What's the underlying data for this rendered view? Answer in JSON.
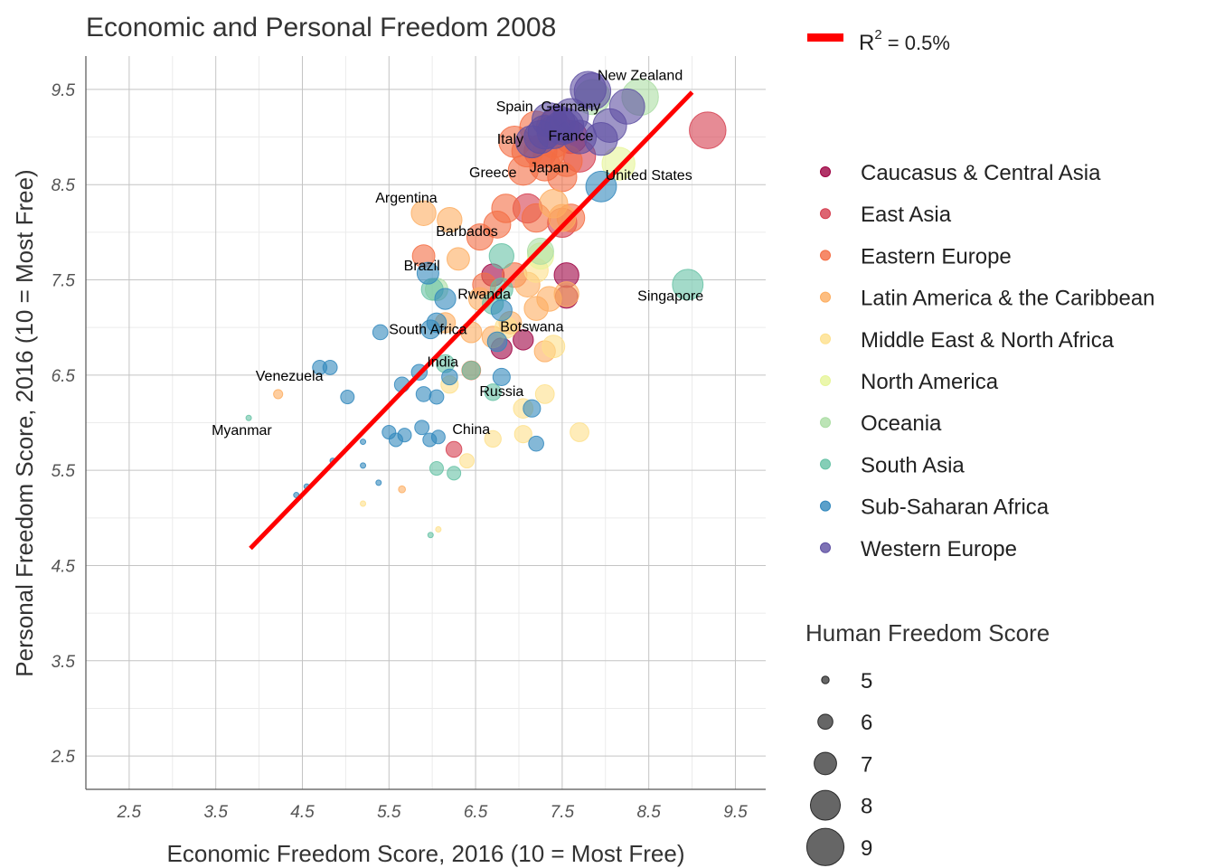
{
  "chart_data": {
    "type": "scatter",
    "title": "Economic and Personal Freedom 2008",
    "xlabel": "Economic Freedom Score, 2016 (10 = Most Free)",
    "ylabel": "Personal Freedom Score, 2016 (10 = Most Free)",
    "xlim": [
      2.0,
      9.85
    ],
    "ylim": [
      2.15,
      9.85
    ],
    "x_ticks": [
      "2.5",
      "3.5",
      "4.5",
      "5.5",
      "6.5",
      "7.5",
      "8.5",
      "9.5"
    ],
    "y_ticks": [
      "2.5",
      "3.5",
      "4.5",
      "5.5",
      "6.5",
      "7.5",
      "8.5",
      "9.5"
    ],
    "grid": true,
    "regression": {
      "label": "R2 = 0.5%",
      "label_main": "R",
      "label_sup": "2",
      "label_rest": " = 0.5%",
      "x": [
        3.9,
        9.0
      ],
      "y": [
        4.68,
        9.47
      ],
      "color": "#ff0000"
    },
    "legend_regions": {
      "position": "right",
      "items": [
        {
          "name": "Caucasus & Central Asia",
          "color": "#9e0142"
        },
        {
          "name": "East Asia",
          "color": "#d53e4f"
        },
        {
          "name": "Eastern Europe",
          "color": "#f46d43"
        },
        {
          "name": "Latin America & the Caribbean",
          "color": "#fdae61"
        },
        {
          "name": "Middle East & North Africa",
          "color": "#fee08b"
        },
        {
          "name": "North America",
          "color": "#e6f598"
        },
        {
          "name": "Oceania",
          "color": "#abdda4"
        },
        {
          "name": "South Asia",
          "color": "#66c2a5"
        },
        {
          "name": "Sub-Saharan Africa",
          "color": "#3288bd"
        },
        {
          "name": "Western Europe",
          "color": "#5e4fa2"
        }
      ]
    },
    "legend_size": {
      "title": "Human Freedom Score",
      "items": [
        {
          "label": "5",
          "value": 5
        },
        {
          "label": "6",
          "value": 6
        },
        {
          "label": "7",
          "value": 7
        },
        {
          "label": "8",
          "value": 8
        },
        {
          "label": "9",
          "value": 9
        }
      ]
    },
    "annotations": [
      {
        "text": "New Zealand",
        "x": 8.4,
        "y": 9.6
      },
      {
        "text": "Spain",
        "x": 6.95,
        "y": 9.27
      },
      {
        "text": "Germany",
        "x": 7.6,
        "y": 9.27
      },
      {
        "text": "Italy",
        "x": 6.9,
        "y": 8.93
      },
      {
        "text": "France",
        "x": 7.6,
        "y": 8.96
      },
      {
        "text": "Greece",
        "x": 6.7,
        "y": 8.58
      },
      {
        "text": "Japan",
        "x": 7.35,
        "y": 8.63
      },
      {
        "text": "United States",
        "x": 8.5,
        "y": 8.55
      },
      {
        "text": "Argentina",
        "x": 5.7,
        "y": 8.31
      },
      {
        "text": "Barbados",
        "x": 6.4,
        "y": 7.96
      },
      {
        "text": "Brazil",
        "x": 5.88,
        "y": 7.6
      },
      {
        "text": "Singapore",
        "x": 8.75,
        "y": 7.28
      },
      {
        "text": "Rwanda",
        "x": 6.6,
        "y": 7.3
      },
      {
        "text": "South Africa",
        "x": 5.95,
        "y": 6.93
      },
      {
        "text": "Botswana",
        "x": 7.15,
        "y": 6.96
      },
      {
        "text": "India",
        "x": 6.12,
        "y": 6.59
      },
      {
        "text": "Venezuela",
        "x": 4.35,
        "y": 6.44
      },
      {
        "text": "Russia",
        "x": 6.8,
        "y": 6.28
      },
      {
        "text": "Myanmar",
        "x": 3.8,
        "y": 5.87
      },
      {
        "text": "China",
        "x": 6.45,
        "y": 5.88
      }
    ],
    "series": [
      {
        "name": "Caucasus & Central Asia",
        "points": [
          {
            "x": 7.55,
            "y": 7.55,
            "s": 7.3
          },
          {
            "x": 7.55,
            "y": 7.32,
            "s": 7.0
          },
          {
            "x": 7.05,
            "y": 6.87,
            "s": 6.7
          },
          {
            "x": 6.8,
            "y": 6.78,
            "s": 6.8
          },
          {
            "x": 6.7,
            "y": 7.55,
            "s": 7.0
          },
          {
            "x": 7.6,
            "y": 9.0,
            "s": 8.4
          }
        ]
      },
      {
        "name": "East Asia",
        "points": [
          {
            "x": 9.18,
            "y": 9.07,
            "s": 8.9
          },
          {
            "x": 6.25,
            "y": 5.72,
            "s": 6.1
          },
          {
            "x": 7.5,
            "y": 8.1,
            "s": 7.9
          },
          {
            "x": 7.25,
            "y": 8.85,
            "s": 8.4
          },
          {
            "x": 7.4,
            "y": 9.1,
            "s": 8.6
          },
          {
            "x": 7.7,
            "y": 8.8,
            "s": 8.3
          },
          {
            "x": 7.1,
            "y": 8.25,
            "s": 7.9
          }
        ]
      },
      {
        "name": "Eastern Europe",
        "points": [
          {
            "x": 6.95,
            "y": 8.95,
            "s": 8.2
          },
          {
            "x": 7.2,
            "y": 9.1,
            "s": 8.4
          },
          {
            "x": 7.35,
            "y": 8.85,
            "s": 8.3
          },
          {
            "x": 7.55,
            "y": 8.75,
            "s": 8.2
          },
          {
            "x": 7.05,
            "y": 8.65,
            "s": 8.0
          },
          {
            "x": 7.3,
            "y": 8.7,
            "s": 8.1
          },
          {
            "x": 7.5,
            "y": 8.58,
            "s": 7.9
          },
          {
            "x": 6.85,
            "y": 8.25,
            "s": 7.8
          },
          {
            "x": 7.2,
            "y": 8.15,
            "s": 7.8
          },
          {
            "x": 6.55,
            "y": 7.95,
            "s": 7.5
          },
          {
            "x": 6.75,
            "y": 8.08,
            "s": 7.6
          },
          {
            "x": 7.6,
            "y": 8.15,
            "s": 7.7
          },
          {
            "x": 6.95,
            "y": 7.55,
            "s": 7.3
          },
          {
            "x": 6.6,
            "y": 7.45,
            "s": 7.1
          },
          {
            "x": 6.45,
            "y": 6.55,
            "s": 6.5
          },
          {
            "x": 5.9,
            "y": 7.75,
            "s": 7.0
          },
          {
            "x": 7.1,
            "y": 8.85,
            "s": 8.2
          },
          {
            "x": 7.4,
            "y": 8.95,
            "s": 8.3
          }
        ]
      },
      {
        "name": "Latin America & the Caribbean",
        "points": [
          {
            "x": 5.9,
            "y": 8.2,
            "s": 7.3
          },
          {
            "x": 6.2,
            "y": 8.13,
            "s": 7.3
          },
          {
            "x": 6.3,
            "y": 7.72,
            "s": 7.0
          },
          {
            "x": 7.4,
            "y": 8.3,
            "s": 7.8
          },
          {
            "x": 6.55,
            "y": 7.3,
            "s": 7.0
          },
          {
            "x": 6.45,
            "y": 6.95,
            "s": 6.8
          },
          {
            "x": 7.2,
            "y": 7.2,
            "s": 7.2
          },
          {
            "x": 7.35,
            "y": 7.3,
            "s": 7.3
          },
          {
            "x": 7.1,
            "y": 7.45,
            "s": 7.3
          },
          {
            "x": 7.55,
            "y": 7.35,
            "s": 7.3
          },
          {
            "x": 6.7,
            "y": 6.9,
            "s": 6.9
          },
          {
            "x": 7.3,
            "y": 6.75,
            "s": 6.8
          },
          {
            "x": 6.9,
            "y": 7.05,
            "s": 7.0
          },
          {
            "x": 6.15,
            "y": 7.05,
            "s": 6.7
          },
          {
            "x": 7.5,
            "y": 8.15,
            "s": 7.6
          },
          {
            "x": 4.22,
            "y": 6.3,
            "s": 5.2
          },
          {
            "x": 5.65,
            "y": 5.3,
            "s": 4.9
          }
        ]
      },
      {
        "name": "Middle East & North Africa",
        "points": [
          {
            "x": 7.4,
            "y": 6.8,
            "s": 7.0
          },
          {
            "x": 7.05,
            "y": 6.15,
            "s": 6.6
          },
          {
            "x": 7.05,
            "y": 5.88,
            "s": 6.3
          },
          {
            "x": 7.7,
            "y": 5.9,
            "s": 6.5
          },
          {
            "x": 7.3,
            "y": 6.3,
            "s": 6.5
          },
          {
            "x": 6.7,
            "y": 5.83,
            "s": 6.2
          },
          {
            "x": 6.4,
            "y": 5.6,
            "s": 5.9
          },
          {
            "x": 5.2,
            "y": 5.15,
            "s": 4.7
          },
          {
            "x": 6.07,
            "y": 4.88,
            "s": 4.7
          },
          {
            "x": 6.2,
            "y": 6.4,
            "s": 6.3
          },
          {
            "x": 6.85,
            "y": 7.0,
            "s": 6.9
          },
          {
            "x": 7.2,
            "y": 7.6,
            "s": 7.2
          }
        ]
      },
      {
        "name": "North America",
        "points": [
          {
            "x": 8.15,
            "y": 8.72,
            "s": 8.4
          },
          {
            "x": 7.25,
            "y": 7.75,
            "s": 7.5
          }
        ]
      },
      {
        "name": "Oceania",
        "points": [
          {
            "x": 8.4,
            "y": 9.42,
            "s": 8.9
          },
          {
            "x": 7.85,
            "y": 9.42,
            "s": 8.7
          },
          {
            "x": 7.25,
            "y": 7.8,
            "s": 7.5
          },
          {
            "x": 6.05,
            "y": 7.4,
            "s": 7.0
          }
        ]
      },
      {
        "name": "South Asia",
        "points": [
          {
            "x": 8.95,
            "y": 7.45,
            "s": 8.1
          },
          {
            "x": 6.8,
            "y": 7.75,
            "s": 7.3
          },
          {
            "x": 6.8,
            "y": 7.4,
            "s": 7.0
          },
          {
            "x": 6.7,
            "y": 7.25,
            "s": 6.8
          },
          {
            "x": 6.15,
            "y": 6.62,
            "s": 6.4
          },
          {
            "x": 6.45,
            "y": 6.55,
            "s": 6.4
          },
          {
            "x": 6.7,
            "y": 6.32,
            "s": 6.2
          },
          {
            "x": 6.05,
            "y": 5.52,
            "s": 5.8
          },
          {
            "x": 6.25,
            "y": 5.47,
            "s": 5.8
          },
          {
            "x": 3.88,
            "y": 6.05,
            "s": 4.7
          },
          {
            "x": 5.98,
            "y": 4.82,
            "s": 4.7
          },
          {
            "x": 6.0,
            "y": 7.4,
            "s": 6.9
          }
        ]
      },
      {
        "name": "Sub-Saharan Africa",
        "points": [
          {
            "x": 7.95,
            "y": 8.48,
            "s": 8.1
          },
          {
            "x": 5.95,
            "y": 7.57,
            "s": 6.9
          },
          {
            "x": 6.15,
            "y": 7.3,
            "s": 6.8
          },
          {
            "x": 6.05,
            "y": 7.05,
            "s": 6.6
          },
          {
            "x": 5.98,
            "y": 6.98,
            "s": 6.5
          },
          {
            "x": 6.8,
            "y": 7.18,
            "s": 6.8
          },
          {
            "x": 6.75,
            "y": 6.85,
            "s": 6.6
          },
          {
            "x": 5.4,
            "y": 6.95,
            "s": 6.0
          },
          {
            "x": 4.7,
            "y": 6.58,
            "s": 5.9
          },
          {
            "x": 4.82,
            "y": 6.58,
            "s": 5.9
          },
          {
            "x": 5.02,
            "y": 6.27,
            "s": 5.8
          },
          {
            "x": 5.65,
            "y": 6.4,
            "s": 6.0
          },
          {
            "x": 5.85,
            "y": 6.53,
            "s": 6.1
          },
          {
            "x": 5.9,
            "y": 6.3,
            "s": 6.0
          },
          {
            "x": 6.05,
            "y": 6.27,
            "s": 5.9
          },
          {
            "x": 6.2,
            "y": 6.48,
            "s": 6.1
          },
          {
            "x": 6.8,
            "y": 6.48,
            "s": 6.3
          },
          {
            "x": 7.15,
            "y": 6.15,
            "s": 6.3
          },
          {
            "x": 5.5,
            "y": 5.9,
            "s": 5.8
          },
          {
            "x": 5.58,
            "y": 5.82,
            "s": 5.8
          },
          {
            "x": 5.68,
            "y": 5.87,
            "s": 5.8
          },
          {
            "x": 5.88,
            "y": 5.95,
            "s": 5.9
          },
          {
            "x": 5.97,
            "y": 5.82,
            "s": 5.8
          },
          {
            "x": 6.07,
            "y": 5.85,
            "s": 5.8
          },
          {
            "x": 7.2,
            "y": 5.78,
            "s": 6.0
          },
          {
            "x": 5.2,
            "y": 5.8,
            "s": 4.7
          },
          {
            "x": 5.2,
            "y": 5.55,
            "s": 4.7
          },
          {
            "x": 4.85,
            "y": 5.6,
            "s": 4.7
          },
          {
            "x": 4.55,
            "y": 5.33,
            "s": 4.7
          },
          {
            "x": 4.43,
            "y": 5.24,
            "s": 4.7
          },
          {
            "x": 5.38,
            "y": 5.37,
            "s": 4.7
          }
        ]
      },
      {
        "name": "Western Europe",
        "points": [
          {
            "x": 7.85,
            "y": 9.48,
            "s": 8.9
          },
          {
            "x": 7.8,
            "y": 9.5,
            "s": 8.8
          },
          {
            "x": 8.25,
            "y": 9.32,
            "s": 8.7
          },
          {
            "x": 7.6,
            "y": 9.22,
            "s": 8.7
          },
          {
            "x": 7.35,
            "y": 9.18,
            "s": 8.6
          },
          {
            "x": 7.5,
            "y": 9.1,
            "s": 8.6
          },
          {
            "x": 8.05,
            "y": 9.12,
            "s": 8.5
          },
          {
            "x": 7.3,
            "y": 9.05,
            "s": 8.5
          },
          {
            "x": 7.7,
            "y": 9.0,
            "s": 8.5
          },
          {
            "x": 7.25,
            "y": 9.0,
            "s": 8.4
          },
          {
            "x": 7.45,
            "y": 9.15,
            "s": 8.6
          },
          {
            "x": 7.95,
            "y": 8.98,
            "s": 8.4
          },
          {
            "x": 7.15,
            "y": 8.95,
            "s": 8.3
          },
          {
            "x": 7.55,
            "y": 9.12,
            "s": 8.6
          },
          {
            "x": 7.4,
            "y": 9.05,
            "s": 8.4
          }
        ]
      }
    ]
  }
}
